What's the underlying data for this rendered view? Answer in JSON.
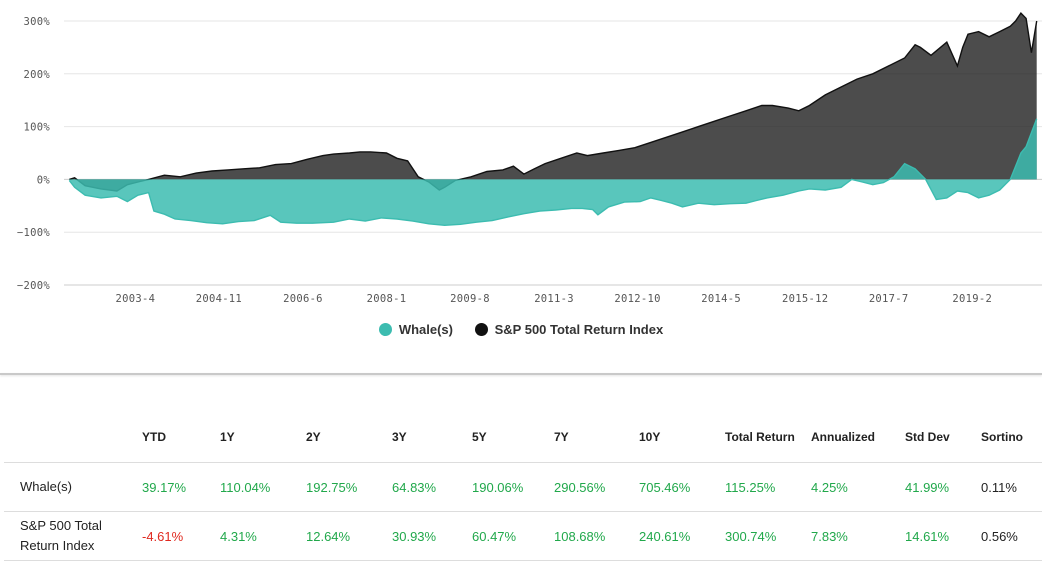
{
  "chart_data": {
    "type": "area",
    "title": "",
    "xlabel": "",
    "ylabel": "",
    "ylim": [
      -200,
      300
    ],
    "yticks": [
      "300%",
      "200%",
      "100%",
      "0%",
      "−100%",
      "−200%"
    ],
    "ytick_values": [
      300,
      200,
      100,
      0,
      -100,
      -200
    ],
    "xticks": [
      "2003-4",
      "2004-11",
      "2006-6",
      "2008-1",
      "2009-8",
      "2011-3",
      "2012-10",
      "2014-5",
      "2015-12",
      "2017-7",
      "2019-2"
    ],
    "xtick_values": [
      2003.25,
      2004.83,
      2006.42,
      2008.0,
      2009.58,
      2011.17,
      2012.75,
      2014.33,
      2015.92,
      2017.5,
      2019.08
    ],
    "xlim": [
      2001.9,
      2020.4
    ],
    "grid": true,
    "legend_position": "bottom",
    "series": [
      {
        "name": "Whale(s)",
        "color": "#3cbcb0",
        "x": [
          2002.0,
          2002.1,
          2002.3,
          2002.6,
          2002.9,
          2003.1,
          2003.3,
          2003.5,
          2003.6,
          2003.8,
          2004.0,
          2004.3,
          2004.6,
          2004.9,
          2005.2,
          2005.5,
          2005.8,
          2006.0,
          2006.3,
          2006.6,
          2007.0,
          2007.3,
          2007.6,
          2007.9,
          2008.2,
          2008.5,
          2008.8,
          2009.1,
          2009.4,
          2009.7,
          2010.0,
          2010.3,
          2010.6,
          2010.9,
          2011.2,
          2011.5,
          2011.7,
          2011.9,
          2012.0,
          2012.2,
          2012.5,
          2012.8,
          2013.0,
          2013.2,
          2013.4,
          2013.6,
          2013.9,
          2014.2,
          2014.5,
          2014.8,
          2015.0,
          2015.2,
          2015.5,
          2015.8,
          2016.0,
          2016.3,
          2016.6,
          2016.8,
          2017.0,
          2017.2,
          2017.4,
          2017.6,
          2017.8,
          2018.0,
          2018.2,
          2018.4,
          2018.6,
          2018.8,
          2019.0,
          2019.2,
          2019.4,
          2019.6,
          2019.8,
          2020.0,
          2020.1,
          2020.3
        ],
        "values": [
          -2,
          -15,
          -30,
          -35,
          -32,
          -42,
          -30,
          -25,
          -60,
          -66,
          -75,
          -78,
          -82,
          -84,
          -80,
          -78,
          -68,
          -81,
          -83,
          -83,
          -81,
          -75,
          -79,
          -73,
          -75,
          -79,
          -84,
          -87,
          -85,
          -81,
          -78,
          -71,
          -65,
          -60,
          -58,
          -55,
          -55,
          -57,
          -67,
          -52,
          -43,
          -42,
          -35,
          -40,
          -45,
          -52,
          -45,
          -48,
          -46,
          -45,
          -40,
          -35,
          -30,
          -22,
          -18,
          -20,
          -15,
          0,
          -5,
          -10,
          -6,
          5,
          30,
          20,
          0,
          -38,
          -35,
          -22,
          -25,
          -35,
          -30,
          -20,
          0,
          50,
          62,
          115
        ]
      },
      {
        "name": "S&P 500 Total Return Index",
        "color": "#222222",
        "x": [
          2002.0,
          2002.1,
          2002.3,
          2002.6,
          2002.9,
          2003.1,
          2003.3,
          2003.5,
          2003.8,
          2004.1,
          2004.4,
          2004.7,
          2005.0,
          2005.3,
          2005.6,
          2005.9,
          2006.2,
          2006.5,
          2006.8,
          2007.0,
          2007.3,
          2007.5,
          2007.7,
          2008.0,
          2008.2,
          2008.4,
          2008.6,
          2008.8,
          2009.0,
          2009.1,
          2009.3,
          2009.6,
          2009.9,
          2010.2,
          2010.4,
          2010.6,
          2010.8,
          2011.0,
          2011.3,
          2011.6,
          2011.8,
          2012.1,
          2012.4,
          2012.7,
          2013.0,
          2013.3,
          2013.6,
          2013.9,
          2014.2,
          2014.5,
          2014.8,
          2015.1,
          2015.3,
          2015.6,
          2015.8,
          2016.0,
          2016.3,
          2016.6,
          2016.9,
          2017.2,
          2017.5,
          2017.8,
          2018.0,
          2018.1,
          2018.3,
          2018.6,
          2018.8,
          2018.9,
          2019.0,
          2019.2,
          2019.4,
          2019.6,
          2019.8,
          2019.9,
          2020.0,
          2020.1,
          2020.2,
          2020.3
        ],
        "values": [
          0,
          3,
          -12,
          -18,
          -22,
          -10,
          -5,
          0,
          8,
          5,
          12,
          16,
          18,
          20,
          22,
          28,
          30,
          38,
          45,
          48,
          50,
          52,
          52,
          50,
          40,
          35,
          5,
          -5,
          -20,
          -15,
          -2,
          5,
          15,
          18,
          25,
          10,
          20,
          30,
          40,
          50,
          45,
          50,
          55,
          60,
          70,
          80,
          90,
          100,
          110,
          120,
          130,
          140,
          140,
          135,
          130,
          140,
          160,
          175,
          190,
          200,
          215,
          230,
          255,
          250,
          235,
          260,
          215,
          250,
          275,
          280,
          270,
          280,
          290,
          300,
          315,
          305,
          240,
          300
        ]
      }
    ]
  },
  "legend": {
    "items": [
      {
        "label": "Whale(s)",
        "color": "#3cbcb0"
      },
      {
        "label": "S&P 500 Total Return Index",
        "color": "#222222"
      }
    ]
  },
  "table": {
    "headers": [
      "",
      "YTD",
      "1Y",
      "2Y",
      "3Y",
      "5Y",
      "7Y",
      "10Y",
      "Total Return",
      "Annualized",
      "Std Dev",
      "Sortino"
    ],
    "rows": [
      {
        "name": "Whale(s)",
        "cells": [
          "39.17%",
          "110.04%",
          "192.75%",
          "64.83%",
          "190.06%",
          "290.56%",
          "705.46%",
          "115.25%",
          "4.25%",
          "41.99%",
          "0.11%"
        ]
      },
      {
        "name": "S&P 500 Total Return Index",
        "cells": [
          "-4.61%",
          "4.31%",
          "12.64%",
          "30.93%",
          "60.47%",
          "108.68%",
          "240.61%",
          "300.74%",
          "7.83%",
          "14.61%",
          "0.56%"
        ]
      }
    ]
  }
}
